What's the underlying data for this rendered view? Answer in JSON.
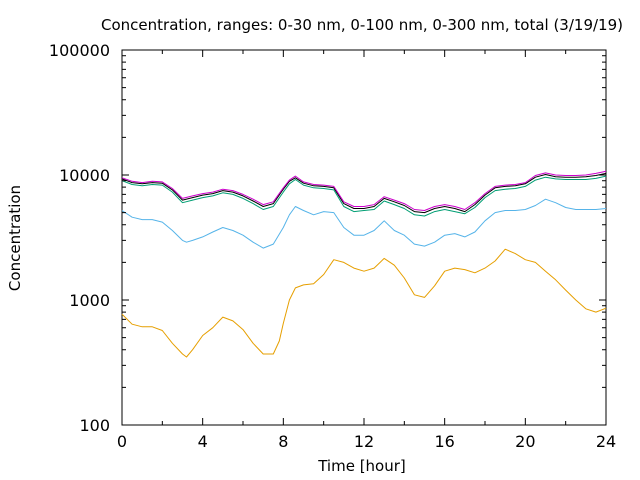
{
  "chart_data": {
    "type": "line",
    "title": "Concentration, ranges: 0-30 nm, 0-100 nm, 0-300 nm, total (3/19/19)",
    "xlabel": "Time [hour]",
    "ylabel": "Concentration",
    "xlim": [
      0,
      24
    ],
    "ylim": [
      100,
      100000
    ],
    "yscale": "log",
    "grid": false,
    "legend": "none",
    "x_ticks": [
      0,
      4,
      8,
      12,
      16,
      20,
      24
    ],
    "x_tick_labels": [
      "0",
      "4",
      "8",
      "12",
      "16",
      "20",
      "24"
    ],
    "y_ticks": [
      100,
      1000,
      10000,
      100000
    ],
    "y_tick_labels": [
      "100",
      "1000",
      "10000",
      "100000"
    ],
    "series": [
      {
        "color": "#e69f00",
        "x": [
          0,
          0.5,
          1,
          1.5,
          2,
          2.5,
          3,
          3.2,
          3.5,
          4,
          4.5,
          5,
          5.5,
          6,
          6.5,
          7,
          7.5,
          7.8,
          8,
          8.3,
          8.6,
          9,
          9.5,
          10,
          10.5,
          11,
          11.5,
          12,
          12.5,
          13,
          13.5,
          14,
          14.5,
          15,
          15.5,
          16,
          16.5,
          17,
          17.5,
          18,
          18.5,
          19,
          19.5,
          20,
          20.5,
          21,
          21.5,
          22,
          22.5,
          23,
          23.5,
          24
        ],
        "y": [
          770,
          640,
          610,
          610,
          570,
          450,
          370,
          350,
          400,
          520,
          600,
          730,
          680,
          580,
          450,
          370,
          370,
          470,
          650,
          1000,
          1250,
          1320,
          1350,
          1600,
          2100,
          2000,
          1800,
          1700,
          1800,
          2150,
          1900,
          1500,
          1100,
          1050,
          1300,
          1700,
          1800,
          1750,
          1650,
          1800,
          2050,
          2550,
          2350,
          2100,
          2000,
          1700,
          1450,
          1200,
          1000,
          850,
          800,
          860
        ]
      },
      {
        "color": "#56b4e9",
        "x": [
          0,
          0.5,
          1,
          1.5,
          2,
          2.5,
          3,
          3.2,
          3.5,
          4,
          4.5,
          5,
          5.5,
          6,
          6.5,
          7,
          7.5,
          8,
          8.3,
          8.6,
          9,
          9.5,
          10,
          10.5,
          11,
          11.5,
          12,
          12.5,
          13,
          13.5,
          14,
          14.5,
          15,
          15.5,
          16,
          16.5,
          17,
          17.5,
          18,
          18.5,
          19,
          19.5,
          20,
          20.5,
          21,
          21.5,
          22,
          22.5,
          23,
          23.5,
          24
        ],
        "y": [
          5200,
          4600,
          4400,
          4400,
          4200,
          3600,
          3000,
          2900,
          3000,
          3200,
          3500,
          3800,
          3600,
          3300,
          2900,
          2600,
          2800,
          3800,
          4800,
          5600,
          5200,
          4800,
          5100,
          5000,
          3800,
          3300,
          3300,
          3600,
          4300,
          3600,
          3300,
          2800,
          2700,
          2900,
          3300,
          3400,
          3200,
          3500,
          4300,
          5000,
          5200,
          5200,
          5300,
          5700,
          6400,
          6000,
          5500,
          5300,
          5300,
          5300,
          5400
        ]
      },
      {
        "color": "#009e73",
        "x": [
          0,
          0.5,
          1,
          1.5,
          2,
          2.5,
          3,
          3.5,
          4,
          4.5,
          5,
          5.5,
          6,
          6.5,
          7,
          7.5,
          8,
          8.3,
          8.6,
          9,
          9.5,
          10,
          10.5,
          11,
          11.5,
          12,
          12.5,
          13,
          13.5,
          14,
          14.5,
          15,
          15.5,
          16,
          16.5,
          17,
          17.5,
          18,
          18.5,
          19,
          19.5,
          20,
          20.5,
          21,
          21.5,
          22,
          22.5,
          23,
          23.5,
          24
        ],
        "y": [
          9000,
          8400,
          8200,
          8400,
          8300,
          7300,
          6000,
          6300,
          6600,
          6800,
          7200,
          7000,
          6500,
          5900,
          5300,
          5600,
          7300,
          8500,
          9200,
          8300,
          7900,
          7800,
          7600,
          5600,
          5100,
          5200,
          5300,
          6200,
          5800,
          5400,
          4800,
          4700,
          5100,
          5300,
          5100,
          4900,
          5500,
          6600,
          7500,
          7700,
          7800,
          8100,
          9100,
          9600,
          9300,
          9200,
          9200,
          9200,
          9400,
          9800
        ]
      },
      {
        "color": "#000000",
        "x": [
          0,
          0.5,
          1,
          1.5,
          2,
          2.5,
          3,
          3.5,
          4,
          4.5,
          5,
          5.5,
          6,
          6.5,
          7,
          7.5,
          8,
          8.3,
          8.6,
          9,
          9.5,
          10,
          10.5,
          11,
          11.5,
          12,
          12.5,
          13,
          13.5,
          14,
          14.5,
          15,
          15.5,
          16,
          16.5,
          17,
          17.5,
          18,
          18.5,
          19,
          19.5,
          20,
          20.5,
          21,
          21.5,
          22,
          22.5,
          23,
          23.5,
          24
        ],
        "y": [
          9300,
          8700,
          8500,
          8700,
          8600,
          7600,
          6300,
          6600,
          6900,
          7100,
          7500,
          7300,
          6800,
          6200,
          5600,
          5900,
          7700,
          8900,
          9500,
          8600,
          8200,
          8100,
          7900,
          5900,
          5400,
          5400,
          5600,
          6500,
          6100,
          5700,
          5100,
          5000,
          5400,
          5600,
          5400,
          5100,
          5800,
          6900,
          7900,
          8100,
          8200,
          8500,
          9600,
          10100,
          9700,
          9600,
          9600,
          9700,
          9900,
          10300
        ]
      },
      {
        "color": "#cc00cc",
        "x": [
          0,
          0.5,
          1,
          1.5,
          2,
          2.5,
          3,
          3.5,
          4,
          4.5,
          5,
          5.5,
          6,
          6.5,
          7,
          7.5,
          8,
          8.3,
          8.6,
          9,
          9.5,
          10,
          10.5,
          11,
          11.5,
          12,
          12.5,
          13,
          13.5,
          14,
          14.5,
          15,
          15.5,
          16,
          16.5,
          17,
          17.5,
          18,
          18.5,
          19,
          19.5,
          20,
          20.5,
          21,
          21.5,
          22,
          22.5,
          23,
          23.5,
          24
        ],
        "y": [
          9500,
          8900,
          8700,
          8900,
          8800,
          7800,
          6500,
          6800,
          7100,
          7300,
          7700,
          7500,
          7000,
          6400,
          5800,
          6100,
          7900,
          9100,
          9800,
          8800,
          8400,
          8300,
          8100,
          6100,
          5600,
          5600,
          5800,
          6700,
          6300,
          5900,
          5300,
          5200,
          5600,
          5800,
          5600,
          5300,
          6000,
          7100,
          8100,
          8300,
          8400,
          8700,
          9900,
          10400,
          10000,
          9900,
          9900,
          10000,
          10300,
          10700
        ]
      }
    ]
  }
}
